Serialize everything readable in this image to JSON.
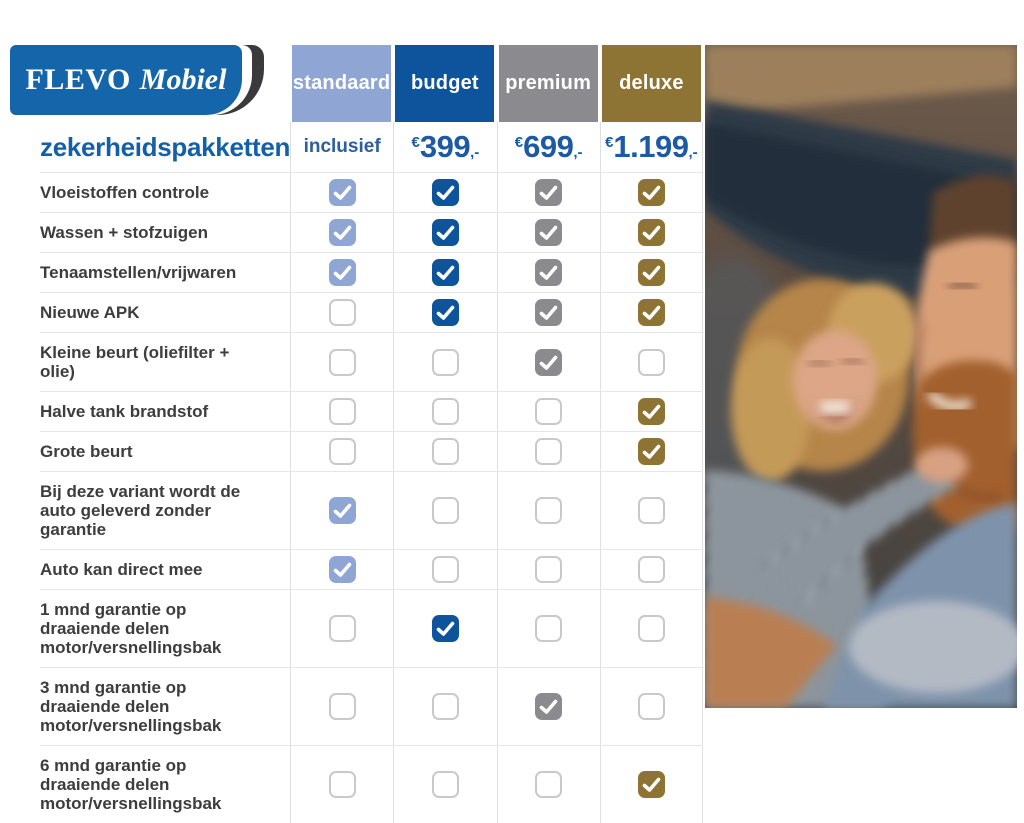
{
  "brand": {
    "name_primary": "FLEVO",
    "name_secondary": "Mobiel"
  },
  "page": {
    "title": "zekerheidspakketten"
  },
  "colors": {
    "standaard": "#8fa6d5",
    "budget": "#0e549c",
    "premium": "#8b8b8f",
    "deluxe": "#8e7434",
    "price_text": "#1c5aa4",
    "title_text": "#1460a8",
    "logo_blue": "#1565ab",
    "logo_dark": "#3a3a3c"
  },
  "packages": [
    {
      "key": "standaard",
      "label": "standaard",
      "color": "#8fa6d5",
      "price": {
        "text": "inclusief"
      }
    },
    {
      "key": "budget",
      "label": "budget",
      "color": "#0e549c",
      "price": {
        "currency": "€",
        "amount": "399",
        "suffix": ",-"
      }
    },
    {
      "key": "premium",
      "label": "premium",
      "color": "#8b8b8f",
      "price": {
        "currency": "€",
        "amount": "699",
        "suffix": ",-"
      }
    },
    {
      "key": "deluxe",
      "label": "deluxe",
      "color": "#8e7434",
      "price": {
        "currency": "€",
        "amount": "1.199",
        "suffix": ",-"
      }
    }
  ],
  "features": [
    {
      "label": "Vloeistoffen controle",
      "included": [
        true,
        true,
        true,
        true
      ]
    },
    {
      "label": "Wassen + stofzuigen",
      "included": [
        true,
        true,
        true,
        true
      ]
    },
    {
      "label": "Tenaamstellen/vrijwaren",
      "included": [
        true,
        true,
        true,
        true
      ]
    },
    {
      "label": "Nieuwe APK",
      "included": [
        false,
        true,
        true,
        true
      ]
    },
    {
      "label": "Kleine beurt (oliefilter + olie)",
      "included": [
        false,
        false,
        true,
        false
      ]
    },
    {
      "label": "Halve tank brandstof",
      "included": [
        false,
        false,
        false,
        true
      ]
    },
    {
      "label": "Grote beurt",
      "included": [
        false,
        false,
        false,
        true
      ]
    },
    {
      "label": "Bij deze variant wordt de auto geleverd zonder garantie",
      "included": [
        true,
        false,
        false,
        false
      ]
    },
    {
      "label": "Auto kan direct mee",
      "included": [
        true,
        false,
        false,
        false
      ]
    },
    {
      "label": "1 mnd garantie op draaiende delen motor/versnellingsbak",
      "included": [
        false,
        true,
        false,
        false
      ]
    },
    {
      "label": "3 mnd garantie op draaiende delen motor/versnellingsbak",
      "included": [
        false,
        false,
        true,
        false
      ]
    },
    {
      "label": "6 mnd garantie op draaiende delen motor/versnellingsbak",
      "included": [
        false,
        false,
        false,
        true
      ]
    }
  ],
  "photo": {
    "description": "Smiling couple in a car; woman with curly blond hair in striped top touching the chin of a bearded man in a blue shirt"
  }
}
